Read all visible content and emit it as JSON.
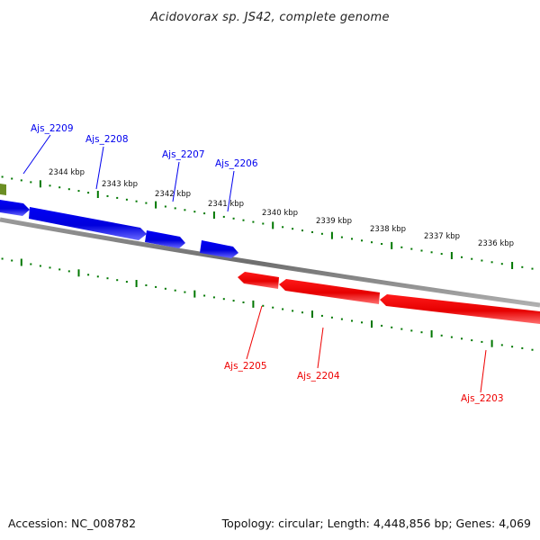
{
  "title": "Acidovorax sp. JS42, complete genome",
  "footer": {
    "accession": "Accession: NC_008782",
    "summary": "Topology: circular; Length: 4,448,856 bp; Genes: 4,069"
  },
  "colors": {
    "forward_gene": "#0000ee",
    "reverse_gene": "#ee0000",
    "backbone": "#808080",
    "ticks": "#007700",
    "partial_gene": "#6b8e23"
  },
  "scale_labels": [
    "2344 kbp",
    "2343 kbp",
    "2342 kbp",
    "2341 kbp",
    "2340 kbp",
    "2339 kbp",
    "2338 kbp",
    "2337 kbp",
    "2336 kbp"
  ],
  "genes_forward": [
    {
      "label": "Ajs_2209"
    },
    {
      "label": "Ajs_2208"
    },
    {
      "label": "Ajs_2207"
    },
    {
      "label": "Ajs_2206"
    }
  ],
  "genes_reverse": [
    {
      "label": "Ajs_2205"
    },
    {
      "label": "Ajs_2204"
    },
    {
      "label": "Ajs_2203"
    }
  ]
}
